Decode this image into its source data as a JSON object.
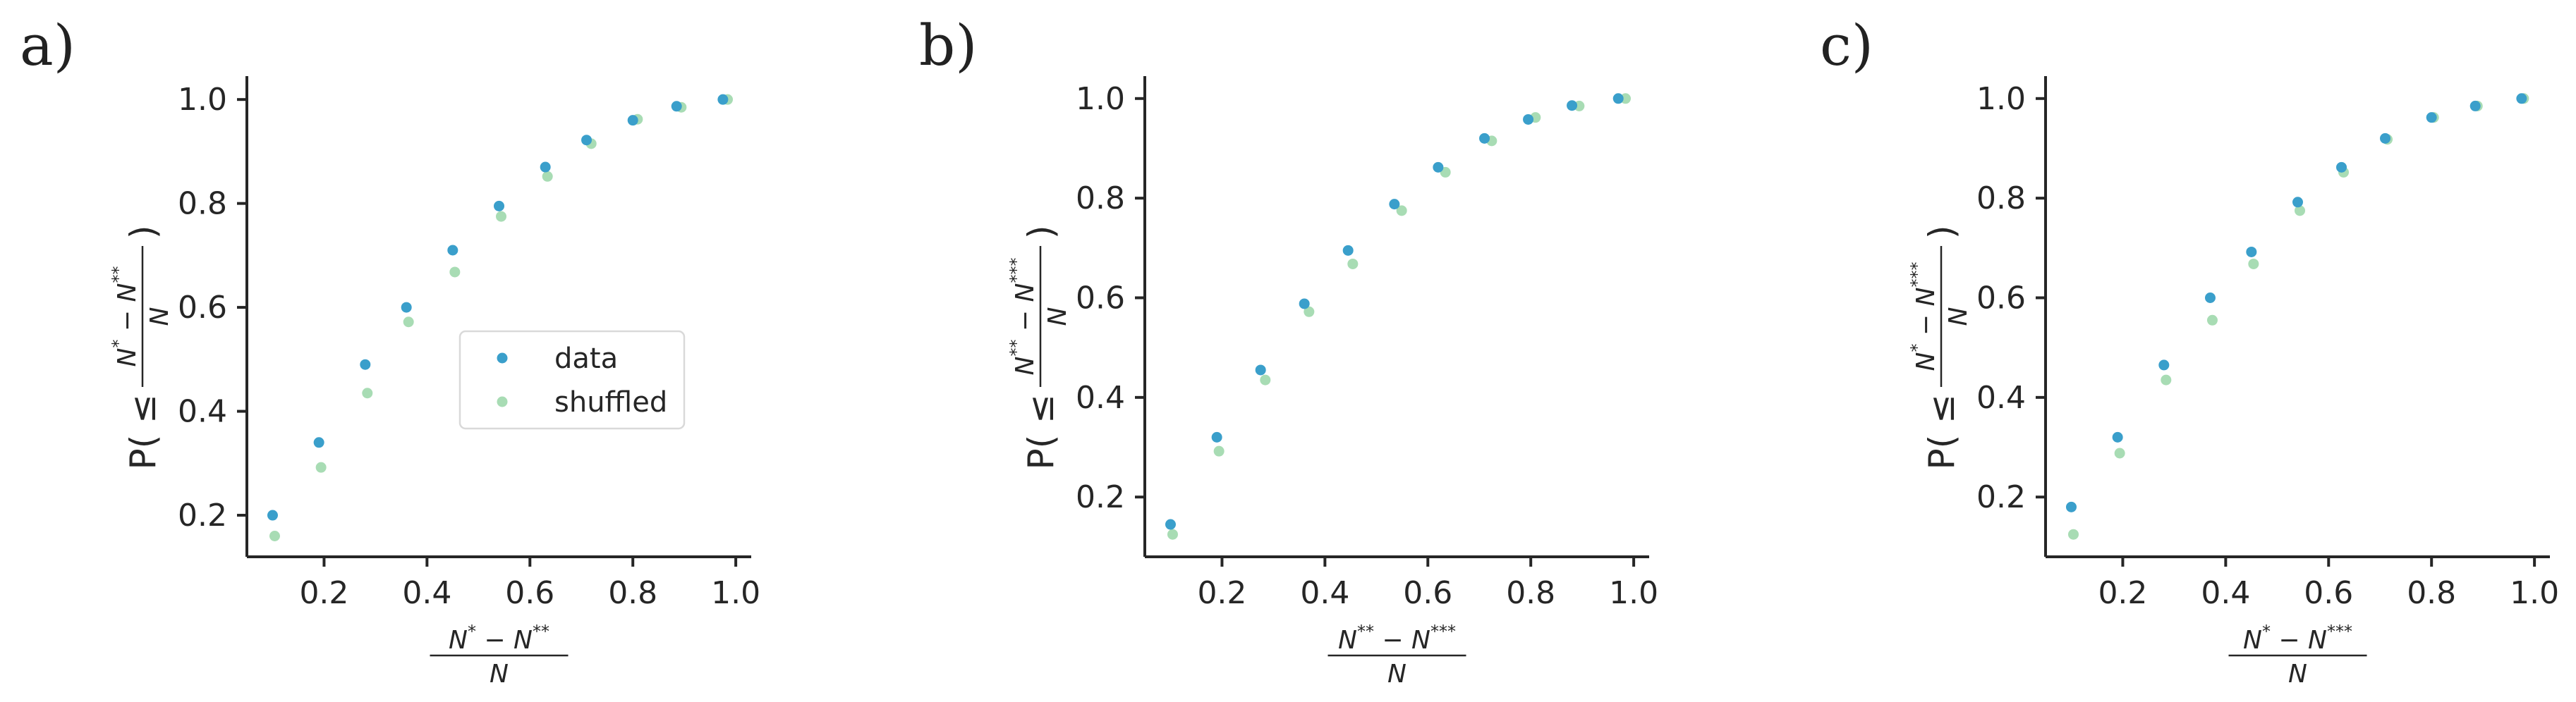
{
  "chart_data": [
    {
      "type": "scatter",
      "panel_label": "a)",
      "xlabel": {
        "numerator": "N* − N**",
        "denominator": "N"
      },
      "ylabel": {
        "prefix": "P( ≤",
        "numerator": "N* − N**",
        "denominator": "N",
        "suffix": ")"
      },
      "xticks": [
        "0.2",
        "0.4",
        "0.6",
        "0.8",
        "1.0"
      ],
      "yticks": [
        "0.2",
        "0.4",
        "0.6",
        "0.8",
        "1.0"
      ],
      "xlim": [
        0.05,
        1.03
      ],
      "ylim": [
        0.12,
        1.045
      ],
      "grid": false,
      "legend": {
        "placement": "center-right",
        "entries": [
          "data",
          "shuffled"
        ]
      },
      "series": [
        {
          "name": "data",
          "color": "#3a9fcb",
          "x": [
            0.1,
            0.19,
            0.28,
            0.36,
            0.45,
            0.54,
            0.63,
            0.71,
            0.8,
            0.885,
            0.975
          ],
          "y": [
            0.2,
            0.34,
            0.49,
            0.6,
            0.71,
            0.795,
            0.87,
            0.922,
            0.96,
            0.987,
            1.0
          ]
        },
        {
          "name": "shuffled",
          "color": "#a8dcb4",
          "x": [
            0.1,
            0.19,
            0.28,
            0.36,
            0.45,
            0.54,
            0.63,
            0.715,
            0.805,
            0.89,
            0.98
          ],
          "y": [
            0.16,
            0.292,
            0.435,
            0.572,
            0.668,
            0.775,
            0.852,
            0.915,
            0.962,
            0.985,
            1.0
          ]
        }
      ]
    },
    {
      "type": "scatter",
      "panel_label": "b)",
      "xlabel": {
        "numerator": "N** − N***",
        "denominator": "N"
      },
      "ylabel": {
        "prefix": "P( ≤",
        "numerator": "N** − N***",
        "denominator": "N",
        "suffix": ")"
      },
      "xticks": [
        "0.2",
        "0.4",
        "0.6",
        "0.8",
        "1.0"
      ],
      "yticks": [
        "0.2",
        "0.4",
        "0.6",
        "0.8",
        "1.0"
      ],
      "xlim": [
        0.05,
        1.03
      ],
      "ylim": [
        0.08,
        1.045
      ],
      "grid": false,
      "series": [
        {
          "name": "data",
          "color": "#3a9fcb",
          "x": [
            0.1,
            0.19,
            0.275,
            0.36,
            0.445,
            0.535,
            0.62,
            0.71,
            0.795,
            0.88,
            0.97
          ],
          "y": [
            0.145,
            0.32,
            0.455,
            0.588,
            0.695,
            0.788,
            0.862,
            0.92,
            0.958,
            0.986,
            1.0
          ]
        },
        {
          "name": "shuffled",
          "color": "#a8dcb4",
          "x": [
            0.1,
            0.19,
            0.28,
            0.365,
            0.45,
            0.545,
            0.63,
            0.72,
            0.805,
            0.89,
            0.98
          ],
          "y": [
            0.125,
            0.292,
            0.435,
            0.572,
            0.668,
            0.775,
            0.852,
            0.915,
            0.962,
            0.985,
            1.0
          ]
        }
      ]
    },
    {
      "type": "scatter",
      "panel_label": "c)",
      "xlabel": {
        "numerator": "N* − N***",
        "denominator": "N"
      },
      "ylabel": {
        "prefix": "P( ≤",
        "numerator": "N* − N***",
        "denominator": "N",
        "suffix": ")"
      },
      "xticks": [
        "0.2",
        "0.4",
        "0.6",
        "0.8",
        "1.0"
      ],
      "yticks": [
        "0.2",
        "0.4",
        "0.6",
        "0.8",
        "1.0"
      ],
      "xlim": [
        0.05,
        1.03
      ],
      "ylim": [
        0.08,
        1.045
      ],
      "grid": false,
      "series": [
        {
          "name": "data",
          "color": "#3a9fcb",
          "x": [
            0.1,
            0.19,
            0.28,
            0.37,
            0.45,
            0.54,
            0.625,
            0.71,
            0.8,
            0.885,
            0.975
          ],
          "y": [
            0.18,
            0.32,
            0.465,
            0.6,
            0.692,
            0.792,
            0.862,
            0.92,
            0.962,
            0.985,
            1.0
          ]
        },
        {
          "name": "shuffled",
          "color": "#a8dcb4",
          "x": [
            0.1,
            0.19,
            0.28,
            0.37,
            0.45,
            0.54,
            0.625,
            0.71,
            0.8,
            0.885,
            0.975
          ],
          "y": [
            0.125,
            0.288,
            0.435,
            0.555,
            0.668,
            0.775,
            0.852,
            0.918,
            0.962,
            0.985,
            1.0
          ]
        }
      ]
    }
  ]
}
